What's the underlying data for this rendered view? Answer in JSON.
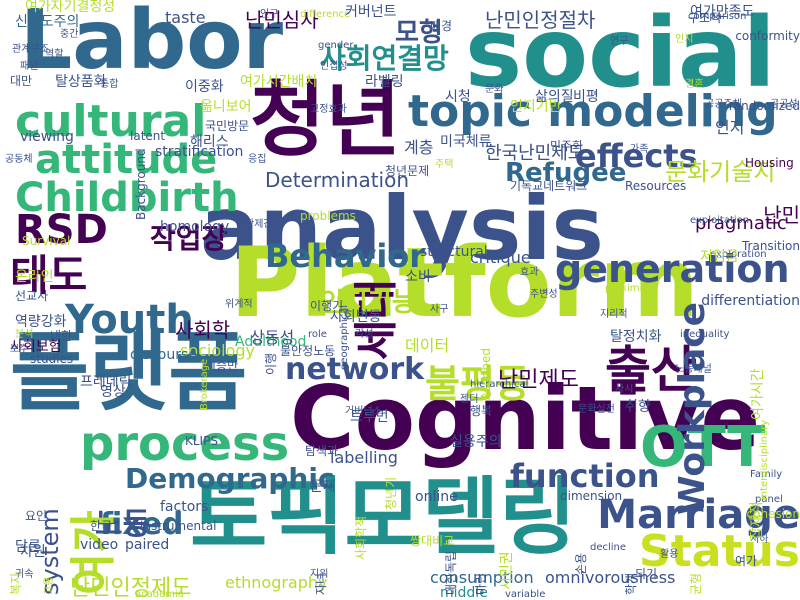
{
  "palette": {
    "dark_purple": "#440154",
    "indigo": "#3b528b",
    "blue": "#31688e",
    "teal": "#21908d",
    "green": "#35b779",
    "lime": "#b5de2b",
    "pale_lime": "#c8e020",
    "light_green": "#7ad151"
  },
  "words": [
    {
      "text": "social",
      "color": "#21908d",
      "size": 96
    },
    {
      "text": "Labor",
      "color": "#31688e",
      "size": 82
    },
    {
      "text": "analysis",
      "color": "#3b528b",
      "size": 88
    },
    {
      "text": "Platform",
      "color": "#b5de2b",
      "size": 96
    },
    {
      "text": "Cognitive",
      "color": "#440154",
      "size": 88
    },
    {
      "text": "플랫폼",
      "color": "#31688e",
      "size": 86
    },
    {
      "text": "토픽모델링",
      "color": "#21908d",
      "size": 84
    },
    {
      "text": "청년",
      "color": "#440154",
      "size": 82
    },
    {
      "text": "topic modeling",
      "color": "#31688e",
      "size": 44
    },
    {
      "text": "cultural",
      "color": "#35b779",
      "size": 44
    },
    {
      "text": "attitude",
      "color": "#35b779",
      "size": 40
    },
    {
      "text": "Childbirth",
      "color": "#35b779",
      "size": 40
    },
    {
      "text": "RSD",
      "color": "#440154",
      "size": 40
    },
    {
      "text": "태도",
      "color": "#440154",
      "size": 42
    },
    {
      "text": "Youth",
      "color": "#31688e",
      "size": 40
    },
    {
      "text": "process",
      "color": "#35b779",
      "size": 48
    },
    {
      "text": "Demographic",
      "color": "#31688e",
      "size": 28
    },
    {
      "text": "generation",
      "color": "#3b528b",
      "size": 38
    },
    {
      "text": "effects",
      "color": "#3b528b",
      "size": 32
    },
    {
      "text": "Refugee",
      "color": "#31688e",
      "size": 26
    },
    {
      "text": "Behavior",
      "color": "#31688e",
      "size": 32
    },
    {
      "text": "network",
      "color": "#3b528b",
      "size": 30
    },
    {
      "text": "불평등",
      "color": "#b5de2b",
      "size": 38
    },
    {
      "text": "출산",
      "color": "#440154",
      "size": 50
    },
    {
      "text": "Marriage",
      "color": "#3b528b",
      "size": 40
    },
    {
      "text": "Status",
      "color": "#c8e020",
      "size": 44
    },
    {
      "text": "OTT",
      "color": "#35b779",
      "size": 56
    },
    {
      "text": "function",
      "color": "#3b528b",
      "size": 32
    },
    {
      "text": "fixed",
      "color": "#31688e",
      "size": 30
    },
    {
      "text": "노동",
      "color": "#3b528b",
      "size": 30
    },
    {
      "text": "세대",
      "color": "#440154",
      "size": 44,
      "vertical": true
    },
    {
      "text": "Workplace",
      "color": "#3b528b",
      "size": 36,
      "vertical": true
    },
    {
      "text": "여가",
      "color": "#b5de2b",
      "size": 46,
      "vertical": true
    },
    {
      "text": "system",
      "color": "#3b528b",
      "size": 24,
      "vertical": true
    },
    {
      "text": "모형",
      "color": "#3b528b",
      "size": 26
    },
    {
      "text": "사회연결망",
      "color": "#21908d",
      "size": 28
    },
    {
      "text": "난민인정절차",
      "color": "#3b528b",
      "size": 20
    },
    {
      "text": "난민심사",
      "color": "#440154",
      "size": 20
    },
    {
      "text": "작업장",
      "color": "#440154",
      "size": 28
    },
    {
      "text": "인지기능",
      "color": "#b5de2b",
      "size": 26
    },
    {
      "text": "문화기술지",
      "color": "#b5de2b",
      "size": 24
    },
    {
      "text": "난민",
      "color": "#440154",
      "size": 20
    },
    {
      "text": "난민제도",
      "color": "#440154",
      "size": 22
    },
    {
      "text": "사회학",
      "color": "#440154",
      "size": 20
    },
    {
      "text": "Determination",
      "color": "#3b528b",
      "size": 20
    },
    {
      "text": "pragmatic",
      "color": "#440154",
      "size": 18
    },
    {
      "text": "난민인정제도",
      "color": "#b5de2b",
      "size": 22
    },
    {
      "text": "한국난민제도",
      "color": "#3b528b",
      "size": 18
    },
    {
      "text": "sociology",
      "color": "#b5de2b",
      "size": 16
    },
    {
      "text": "labelling",
      "color": "#3b528b",
      "size": 16
    },
    {
      "text": "consumption",
      "color": "#31688e",
      "size": 16
    },
    {
      "text": "omnivorousness",
      "color": "#3b528b",
      "size": 16
    },
    {
      "text": "ethnography",
      "color": "#b5de2b",
      "size": 16
    },
    {
      "text": "critique",
      "color": "#3b528b",
      "size": 16
    },
    {
      "text": "Adulthood",
      "color": "#35b779",
      "size": 14
    },
    {
      "text": "homology",
      "color": "#3b528b",
      "size": 14
    },
    {
      "text": "structural",
      "color": "#3b528b",
      "size": 14
    },
    {
      "text": "differentiation",
      "color": "#3b528b",
      "size": 14
    },
    {
      "text": "인지",
      "color": "#3b528b",
      "size": 16
    },
    {
      "text": "데이터",
      "color": "#b5de2b",
      "size": 16
    },
    {
      "text": "인지기반",
      "color": "#b5de2b",
      "size": 14
    },
    {
      "text": "사회변동",
      "color": "#3b528b",
      "size": 14
    },
    {
      "text": "video",
      "color": "#3b528b",
      "size": 14
    },
    {
      "text": "paired",
      "color": "#3b528b",
      "size": 14
    },
    {
      "text": "factors",
      "color": "#3b528b",
      "size": 14
    },
    {
      "text": "online",
      "color": "#3b528b",
      "size": 14
    },
    {
      "text": "middle",
      "color": "#21908d",
      "size": 14
    },
    {
      "text": "variable",
      "color": "#3b528b",
      "size": 10
    },
    {
      "text": "Family",
      "color": "#3b528b",
      "size": 10
    },
    {
      "text": "Housing",
      "color": "#440154",
      "size": 12
    },
    {
      "text": "Transition",
      "color": "#3b528b",
      "size": 12
    },
    {
      "text": "exploration",
      "color": "#3b528b",
      "size": 10
    },
    {
      "text": "exploitation",
      "color": "#3b528b",
      "size": 10
    },
    {
      "text": "Resources",
      "color": "#3b528b",
      "size": 12
    },
    {
      "text": "problems",
      "color": "#b5de2b",
      "size": 12
    },
    {
      "text": "latent",
      "color": "#3b528b",
      "size": 12
    },
    {
      "text": "stratification",
      "color": "#3b528b",
      "size": 14
    },
    {
      "text": "viewing",
      "color": "#3b528b",
      "size": 14
    },
    {
      "text": "taste",
      "color": "#3b528b",
      "size": 16
    },
    {
      "text": "difference",
      "color": "#b5de2b",
      "size": 10
    },
    {
      "text": "gender",
      "color": "#3b528b",
      "size": 10
    },
    {
      "text": "comparison",
      "color": "#3b528b",
      "size": 10
    },
    {
      "text": "conformity",
      "color": "#3b528b",
      "size": 12
    },
    {
      "text": "randomized",
      "color": "#3b528b",
      "size": 12
    },
    {
      "text": "Survival",
      "color": "#b5de2b",
      "size": 12
    },
    {
      "text": "discourse",
      "color": "#31688e",
      "size": 14
    },
    {
      "text": "studies",
      "color": "#3b528b",
      "size": 12
    },
    {
      "text": "role",
      "color": "#3b528b",
      "size": 10
    },
    {
      "text": "inequality",
      "color": "#3b528b",
      "size": 10
    },
    {
      "text": "hierarchical",
      "color": "#3b528b",
      "size": 10
    },
    {
      "text": "dimension",
      "color": "#3b528b",
      "size": 12
    },
    {
      "text": "decline",
      "color": "#3b528b",
      "size": 10
    },
    {
      "text": "panel",
      "color": "#3b528b",
      "size": 10
    },
    {
      "text": "cohesion",
      "color": "#b5de2b",
      "size": 12
    },
    {
      "text": "instrumental",
      "color": "#3b528b",
      "size": 12
    },
    {
      "text": "academia",
      "color": "#b5de2b",
      "size": 10
    },
    {
      "text": "KLIPS",
      "color": "#3b528b",
      "size": 12
    },
    {
      "text": "proximity",
      "color": "#b5de2b",
      "size": 10
    },
    {
      "text": "계층",
      "color": "#3b528b",
      "size": 16
    },
    {
      "text": "신체도주의",
      "color": "#31688e",
      "size": 14
    },
    {
      "text": "여가자기결정성",
      "color": "#b5de2b",
      "size": 14
    },
    {
      "text": "커버넌트",
      "color": "#3b528b",
      "size": 14
    },
    {
      "text": "여가만족도",
      "color": "#3b528b",
      "size": 14
    },
    {
      "text": "구조적",
      "color": "#3b528b",
      "size": 12
    },
    {
      "text": "대만",
      "color": "#3b528b",
      "size": 12
    },
    {
      "text": "탈상품화",
      "color": "#3b528b",
      "size": 14
    },
    {
      "text": "이중화",
      "color": "#3b528b",
      "size": 14
    },
    {
      "text": "여가시간배치",
      "color": "#b5de2b",
      "size": 14
    },
    {
      "text": "라벨링",
      "color": "#3b528b",
      "size": 14
    },
    {
      "text": "시청",
      "color": "#3b528b",
      "size": 14
    },
    {
      "text": "삶의질",
      "color": "#3b528b",
      "size": 14
    },
    {
      "text": "비평",
      "color": "#3b528b",
      "size": 14
    },
    {
      "text": "옮니보어",
      "color": "#b5de2b",
      "size": 14
    },
    {
      "text": "국민방문",
      "color": "#3b528b",
      "size": 12
    },
    {
      "text": "해리스",
      "color": "#3b528b",
      "size": 14
    },
    {
      "text": "미국체류",
      "color": "#3b528b",
      "size": 14
    },
    {
      "text": "민주화",
      "color": "#3b528b",
      "size": 12
    },
    {
      "text": "청년문제",
      "color": "#3b528b",
      "size": 12
    },
    {
      "text": "기독교네트워크",
      "color": "#3b528b",
      "size": 12
    },
    {
      "text": "저임금",
      "color": "#b5de2b",
      "size": 14
    },
    {
      "text": "소비",
      "color": "#3b528b",
      "size": 14
    },
    {
      "text": "온라인",
      "color": "#b5de2b",
      "size": 14
    },
    {
      "text": "선교사",
      "color": "#3b528b",
      "size": 12
    },
    {
      "text": "역량강화",
      "color": "#3b528b",
      "size": 14
    },
    {
      "text": "내한",
      "color": "#3b528b",
      "size": 12
    },
    {
      "text": "사회보험",
      "color": "#440154",
      "size": 14
    },
    {
      "text": "프레데릭",
      "color": "#3b528b",
      "size": 14
    },
    {
      "text": "영상",
      "color": "#3b528b",
      "size": 14
    },
    {
      "text": "요인",
      "color": "#3b528b",
      "size": 12
    },
    {
      "text": "한국",
      "color": "#3b528b",
      "size": 12
    },
    {
      "text": "담론",
      "color": "#3b528b",
      "size": 14
    },
    {
      "text": "차원",
      "color": "#3b528b",
      "size": 14
    },
    {
      "text": "상동성",
      "color": "#3b528b",
      "size": 16
    },
    {
      "text": "불안정노동",
      "color": "#3b528b",
      "size": 12
    },
    {
      "text": "실용주의",
      "color": "#3b528b",
      "size": 14
    },
    {
      "text": "행복",
      "color": "#3b528b",
      "size": 12
    },
    {
      "text": "취향",
      "color": "#3b528b",
      "size": 14
    },
    {
      "text": "이행기",
      "color": "#3b528b",
      "size": 12
    },
    {
      "text": "트루먼",
      "color": "#3b528b",
      "size": 14
    },
    {
      "text": "탐색과",
      "color": "#3b528b",
      "size": 12
    },
    {
      "text": "문제",
      "color": "#3b528b",
      "size": 14
    },
    {
      "text": "쌍대비교",
      "color": "#b5de2b",
      "size": 12
    },
    {
      "text": "탈정치화",
      "color": "#3b528b",
      "size": 14
    },
    {
      "text": "노동패널",
      "color": "#3b528b",
      "size": 10
    },
    {
      "text": "되기",
      "color": "#3b528b",
      "size": 12
    },
    {
      "text": "여가",
      "color": "#3b528b",
      "size": 12
    },
    {
      "text": "활용",
      "color": "#3b528b",
      "size": 10
    },
    {
      "text": "저하",
      "color": "#3b528b",
      "size": 10
    },
    {
      "text": "지위",
      "color": "#3b528b",
      "size": 10
    },
    {
      "text": "귀속",
      "color": "#3b528b",
      "size": 10
    },
    {
      "text": "주변성",
      "color": "#3b528b",
      "size": 10
    },
    {
      "text": "효과",
      "color": "#3b528b",
      "size": 10
    },
    {
      "text": "사구",
      "color": "#3b528b",
      "size": 10
    },
    {
      "text": "젠더",
      "color": "#3b528b",
      "size": 10
    },
    {
      "text": "학제간",
      "color": "#3b528b",
      "size": 10
    },
    {
      "text": "이승만",
      "color": "#3b528b",
      "size": 12
    },
    {
      "text": "배경",
      "color": "#3b528b",
      "size": 12
    },
    {
      "text": "인접성",
      "color": "#3b528b",
      "size": 10
    },
    {
      "text": "통합",
      "color": "#3b528b",
      "size": 10
    },
    {
      "text": "역할",
      "color": "#3b528b",
      "size": 10
    },
    {
      "text": "중간",
      "color": "#3b528b",
      "size": 10
    },
    {
      "text": "인구",
      "color": "#3b528b",
      "size": 10
    },
    {
      "text": "결혼",
      "color": "#b5de2b",
      "size": 10
    },
    {
      "text": "공공주체",
      "color": "#3b528b",
      "size": 10
    },
    {
      "text": "공공성",
      "color": "#3b528b",
      "size": 10
    },
    {
      "text": "인지",
      "color": "#b5de2b",
      "size": 10
    },
    {
      "text": "연구",
      "color": "#3b528b",
      "size": 10
    },
    {
      "text": "문화",
      "color": "#3b528b",
      "size": 10
    },
    {
      "text": "관계구조",
      "color": "#3b528b",
      "size": 10
    },
    {
      "text": "패널",
      "color": "#3b528b",
      "size": 10
    },
    {
      "text": "공동체",
      "color": "#3b528b",
      "size": 10
    },
    {
      "text": "응집",
      "color": "#3b528b",
      "size": 10
    },
    {
      "text": "가족",
      "color": "#3b528b",
      "size": 10
    },
    {
      "text": "주택",
      "color": "#b5de2b",
      "size": 10
    },
    {
      "text": "고정효과",
      "color": "#3b528b",
      "size": 10
    },
    {
      "text": "위계적",
      "color": "#3b528b",
      "size": 10
    },
    {
      "text": "각성",
      "color": "#3b528b",
      "size": 10
    },
    {
      "text": "거버넌스",
      "color": "#3b528b",
      "size": 10
    },
    {
      "text": "문화실천",
      "color": "#3b528b",
      "size": 10
    },
    {
      "text": "사시",
      "color": "#3b528b",
      "size": 10
    },
    {
      "text": "보수",
      "color": "#3b528b",
      "size": 10
    },
    {
      "text": "분석",
      "color": "#b5de2b",
      "size": 10
    },
    {
      "text": "Ascribed",
      "color": "#b5de2b",
      "size": 12,
      "vertical": true
    },
    {
      "text": "Brokerage",
      "color": "#b5de2b",
      "size": 10,
      "vertical": true
    },
    {
      "text": "Background",
      "color": "#3b528b",
      "size": 12,
      "vertical": true
    },
    {
      "text": "geographical",
      "color": "#3b528b",
      "size": 10,
      "vertical": true
    },
    {
      "text": "interdisciplinary",
      "color": "#b5de2b",
      "size": 10,
      "vertical": true
    },
    {
      "text": "여가시간",
      "color": "#b5de2b",
      "size": 14,
      "vertical": true
    },
    {
      "text": "시민권",
      "color": "#b5de2b",
      "size": 14,
      "vertical": true
    },
    {
      "text": "잡재적",
      "color": "#b5de2b",
      "size": 14,
      "vertical": true
    },
    {
      "text": "청년기",
      "color": "#b5de2b",
      "size": 12,
      "vertical": true
    },
    {
      "text": "사회학적",
      "color": "#b5de2b",
      "size": 12,
      "vertical": true
    },
    {
      "text": "대한독립",
      "color": "#3b528b",
      "size": 12,
      "vertical": true
    },
    {
      "text": "자녀",
      "color": "#3b528b",
      "size": 12,
      "vertical": true
    },
    {
      "text": "복지",
      "color": "#b5de2b",
      "size": 12,
      "vertical": true
    },
    {
      "text": "이행",
      "color": "#3b528b",
      "size": 12,
      "vertical": true
    },
    {
      "text": "손용",
      "color": "#3b528b",
      "size": 12,
      "vertical": true
    },
    {
      "text": "마린",
      "color": "#3b528b",
      "size": 12,
      "vertical": true
    },
    {
      "text": "학계",
      "color": "#3b528b",
      "size": 12,
      "vertical": true
    },
    {
      "text": "균형",
      "color": "#b5de2b",
      "size": 12,
      "vertical": true
    },
    {
      "text": "지리적",
      "color": "#3b528b",
      "size": 10
    },
    {
      "text": "고용",
      "color": "#b5de2b",
      "size": 10,
      "vertical": true
    }
  ]
}
